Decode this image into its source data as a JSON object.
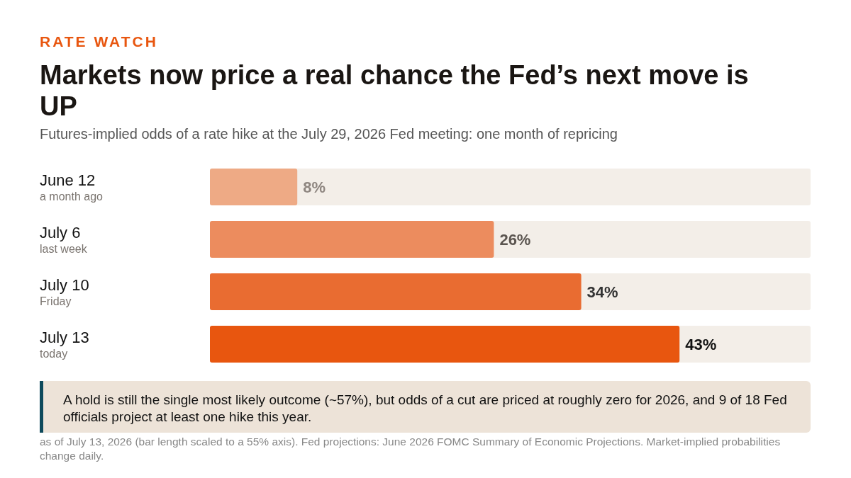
{
  "chart_data": {
    "type": "bar",
    "orientation": "horizontal",
    "title": "Markets now price a real chance the Fed’s next move is UP",
    "subtitle": "Futures-implied odds of a rate hike at the July 29, 2026 Fed meeting: one month of repricing",
    "annotations": [
      "RATE WATCH",
      "A hold is still the single most likely outcome (~57%), but odds of a cut are priced at roughly zero for 2026, and 9 of 18 Fed officials project at least one hike this year.",
      "as of July 13, 2026 (bar length scaled to a 55% axis). Fed projections: June 2026 FOMC Summary of Economic Projections. Market-implied probabilities change daily."
    ],
    "categories": [
      "June 12\na month ago",
      "July 6\nlast week",
      "July 10\nFriday",
      "July 13\ntoday"
    ],
    "values": [
      8,
      26,
      34,
      43
    ],
    "value_labels": [
      "8%",
      "26%",
      "34%",
      "43%"
    ],
    "colors": [
      "#eeaa85",
      "#ec8c5e",
      "#e96c31",
      "#e8560f"
    ],
    "xlim": [
      0,
      55
    ],
    "tick_labels": "y"
  }
}
